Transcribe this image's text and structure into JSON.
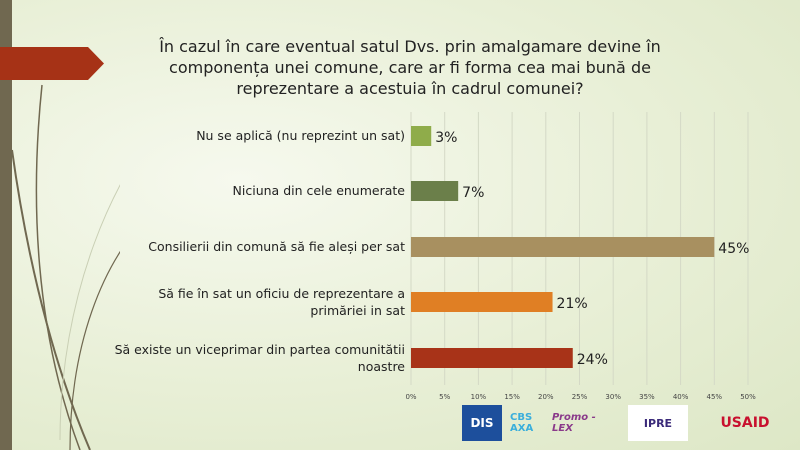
{
  "chart_data": {
    "type": "bar",
    "orientation": "horizontal",
    "title": "În cazul în care eventual satul Dvs. prin amalgamare devine în componența unei comune, care ar fi forma cea mai bună de reprezentare a acestuia în cadrul comunei?",
    "categories": [
      "Nu se aplică (nu reprezint un sat)",
      "Niciuna din cele enumerate",
      "Consilierii din comună să fie aleși per sat",
      "Să fie în sat un oficiu de reprezentare a primăriei in sat",
      "Să existe un viceprimar din partea comunitătii noastre"
    ],
    "values": [
      3,
      7,
      45,
      21,
      24
    ],
    "data_labels": [
      "3%",
      "7%",
      "45%",
      "21%",
      "24%"
    ],
    "colors": [
      "#8fac4a",
      "#6b7f4a",
      "#a89060",
      "#e07f24",
      "#a83318"
    ],
    "xlim": [
      0,
      50
    ],
    "xticks": [
      "0%",
      "5%",
      "10%",
      "15%",
      "20%",
      "25%",
      "30%",
      "35%",
      "40%",
      "45%",
      "50%"
    ],
    "grid": true
  },
  "logos": {
    "dis": "DIS",
    "cbs": "CBS AXA",
    "promolex": "Promo - LEX",
    "ipre": "IPRE",
    "usaid": "USAID"
  }
}
